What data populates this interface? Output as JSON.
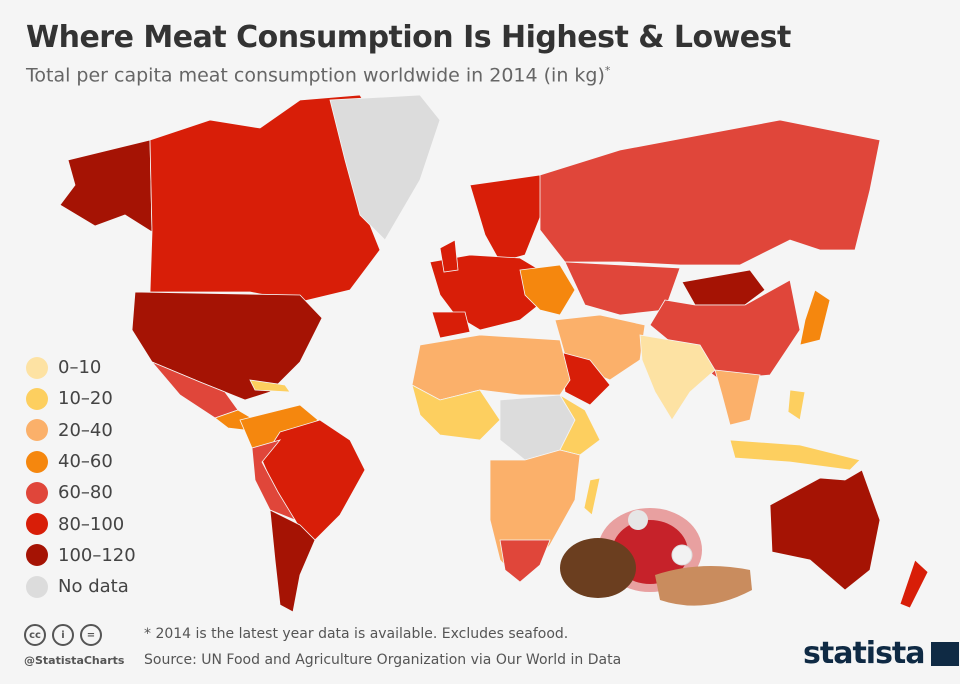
{
  "header": {
    "title": "Where Meat Consumption Is Highest & Lowest",
    "subtitle": "Total per capita meat consumption worldwide in 2014 (in kg)",
    "subtitle_marker": "*"
  },
  "legend": [
    {
      "label": "0–10",
      "color": "#fde2a3"
    },
    {
      "label": "10–20",
      "color": "#fdcf5f"
    },
    {
      "label": "20–40",
      "color": "#fbb06a"
    },
    {
      "label": "40–60",
      "color": "#f5870e"
    },
    {
      "label": "60–80",
      "color": "#e0463a"
    },
    {
      "label": "80–100",
      "color": "#d81e08"
    },
    {
      "label": "100–120",
      "color": "#a51304"
    },
    {
      "label": "No data",
      "color": "#dcdcdc"
    }
  ],
  "footer": {
    "note": "* 2014 is the latest year data is available. Excludes seafood.",
    "source": "Source: UN Food and Agriculture Organization via Our World in Data",
    "handle": "@StatistaCharts",
    "license_icons": [
      "cc",
      "by",
      "nd"
    ],
    "logo": "statista"
  }
}
